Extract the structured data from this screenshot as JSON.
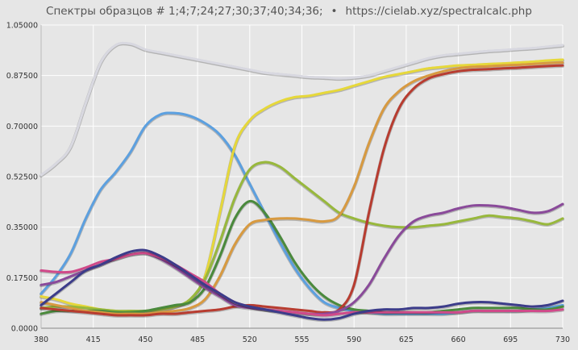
{
  "chart_data": {
    "type": "line",
    "title": "Спектры образцов # 1;4;7;24;27;30;37;40;34;36;",
    "subtitle": "https://cielab.xyz/spectralcalc.php",
    "title_separator": "•",
    "xlabel": "",
    "ylabel": "",
    "xlim": [
      380,
      730
    ],
    "ylim": [
      0,
      1.05
    ],
    "grid": true,
    "legend": "none",
    "x_ticks": [
      "380",
      "415",
      "450",
      "485",
      "520",
      "555",
      "590",
      "625",
      "660",
      "695",
      "730"
    ],
    "y_ticks": [
      "0.0000",
      "0.17500",
      "0.35000",
      "0.52500",
      "0.70000",
      "0.87500",
      "1.05000"
    ],
    "colors": {
      "background": "#e6e6e6",
      "grid": "#ffffff",
      "title": "#555555"
    },
    "x": [
      380,
      390,
      400,
      410,
      420,
      430,
      440,
      450,
      460,
      470,
      480,
      490,
      500,
      510,
      520,
      530,
      540,
      550,
      560,
      570,
      580,
      590,
      600,
      610,
      620,
      630,
      640,
      650,
      660,
      670,
      680,
      690,
      700,
      710,
      720,
      730
    ],
    "series": [
      {
        "color": "#d8d8e0",
        "values": [
          0.53,
          0.57,
          0.63,
          0.78,
          0.92,
          0.98,
          0.985,
          0.965,
          0.955,
          0.945,
          0.935,
          0.925,
          0.915,
          0.905,
          0.895,
          0.885,
          0.88,
          0.875,
          0.87,
          0.868,
          0.865,
          0.868,
          0.875,
          0.89,
          0.905,
          0.92,
          0.935,
          0.945,
          0.95,
          0.955,
          0.96,
          0.963,
          0.967,
          0.97,
          0.975,
          0.98
        ]
      },
      {
        "color": "#5ca0e0",
        "values": [
          0.12,
          0.18,
          0.26,
          0.38,
          0.48,
          0.54,
          0.61,
          0.7,
          0.74,
          0.745,
          0.735,
          0.71,
          0.67,
          0.6,
          0.5,
          0.4,
          0.3,
          0.21,
          0.14,
          0.09,
          0.07,
          0.06,
          0.055,
          0.05,
          0.05,
          0.05,
          0.05,
          0.05,
          0.055,
          0.06,
          0.06,
          0.06,
          0.06,
          0.065,
          0.07,
          0.08
        ]
      },
      {
        "color": "#e6d83a",
        "values": [
          0.11,
          0.1,
          0.085,
          0.075,
          0.065,
          0.06,
          0.055,
          0.06,
          0.065,
          0.075,
          0.1,
          0.18,
          0.4,
          0.63,
          0.72,
          0.76,
          0.785,
          0.8,
          0.805,
          0.815,
          0.825,
          0.84,
          0.855,
          0.87,
          0.88,
          0.89,
          0.9,
          0.905,
          0.91,
          0.912,
          0.915,
          0.917,
          0.92,
          0.923,
          0.927,
          0.93
        ]
      },
      {
        "color": "#98b83c",
        "values": [
          0.07,
          0.075,
          0.075,
          0.07,
          0.065,
          0.06,
          0.06,
          0.06,
          0.065,
          0.075,
          0.1,
          0.17,
          0.3,
          0.45,
          0.55,
          0.575,
          0.56,
          0.52,
          0.48,
          0.44,
          0.4,
          0.38,
          0.365,
          0.355,
          0.35,
          0.35,
          0.355,
          0.36,
          0.37,
          0.38,
          0.39,
          0.385,
          0.38,
          0.37,
          0.36,
          0.38
        ]
      },
      {
        "color": "#4a8a3c",
        "values": [
          0.05,
          0.06,
          0.06,
          0.06,
          0.06,
          0.055,
          0.055,
          0.06,
          0.07,
          0.08,
          0.09,
          0.14,
          0.25,
          0.38,
          0.44,
          0.4,
          0.32,
          0.23,
          0.16,
          0.11,
          0.08,
          0.065,
          0.06,
          0.055,
          0.055,
          0.055,
          0.055,
          0.06,
          0.065,
          0.07,
          0.07,
          0.07,
          0.07,
          0.065,
          0.065,
          0.075
        ]
      },
      {
        "color": "#d89a40",
        "values": [
          0.09,
          0.08,
          0.07,
          0.06,
          0.055,
          0.05,
          0.05,
          0.05,
          0.055,
          0.06,
          0.07,
          0.1,
          0.18,
          0.29,
          0.36,
          0.375,
          0.38,
          0.38,
          0.375,
          0.37,
          0.39,
          0.49,
          0.64,
          0.76,
          0.82,
          0.855,
          0.875,
          0.89,
          0.9,
          0.905,
          0.907,
          0.91,
          0.912,
          0.915,
          0.918,
          0.92
        ]
      },
      {
        "color": "#b83c30",
        "values": [
          0.07,
          0.065,
          0.06,
          0.055,
          0.05,
          0.045,
          0.045,
          0.045,
          0.05,
          0.05,
          0.055,
          0.06,
          0.065,
          0.075,
          0.08,
          0.075,
          0.07,
          0.065,
          0.06,
          0.055,
          0.065,
          0.15,
          0.4,
          0.62,
          0.76,
          0.83,
          0.865,
          0.88,
          0.89,
          0.895,
          0.897,
          0.9,
          0.902,
          0.905,
          0.908,
          0.91
        ]
      },
      {
        "color": "#8a4a9a",
        "values": [
          0.15,
          0.16,
          0.18,
          0.2,
          0.22,
          0.24,
          0.255,
          0.26,
          0.24,
          0.21,
          0.175,
          0.14,
          0.11,
          0.08,
          0.07,
          0.065,
          0.06,
          0.055,
          0.05,
          0.05,
          0.06,
          0.09,
          0.15,
          0.24,
          0.32,
          0.37,
          0.39,
          0.4,
          0.415,
          0.425,
          0.425,
          0.42,
          0.41,
          0.4,
          0.405,
          0.43
        ]
      },
      {
        "color": "#d04a8a",
        "values": [
          0.2,
          0.195,
          0.195,
          0.21,
          0.23,
          0.24,
          0.255,
          0.26,
          0.245,
          0.22,
          0.19,
          0.16,
          0.12,
          0.09,
          0.075,
          0.065,
          0.06,
          0.055,
          0.05,
          0.045,
          0.05,
          0.055,
          0.055,
          0.055,
          0.055,
          0.055,
          0.055,
          0.055,
          0.055,
          0.06,
          0.06,
          0.06,
          0.06,
          0.06,
          0.06,
          0.065
        ]
      },
      {
        "color": "#3c3c8a",
        "values": [
          0.08,
          0.12,
          0.16,
          0.2,
          0.22,
          0.245,
          0.265,
          0.27,
          0.25,
          0.22,
          0.185,
          0.15,
          0.12,
          0.09,
          0.075,
          0.065,
          0.055,
          0.045,
          0.035,
          0.03,
          0.035,
          0.05,
          0.06,
          0.065,
          0.065,
          0.07,
          0.07,
          0.075,
          0.085,
          0.09,
          0.09,
          0.085,
          0.08,
          0.075,
          0.08,
          0.095
        ]
      }
    ]
  }
}
